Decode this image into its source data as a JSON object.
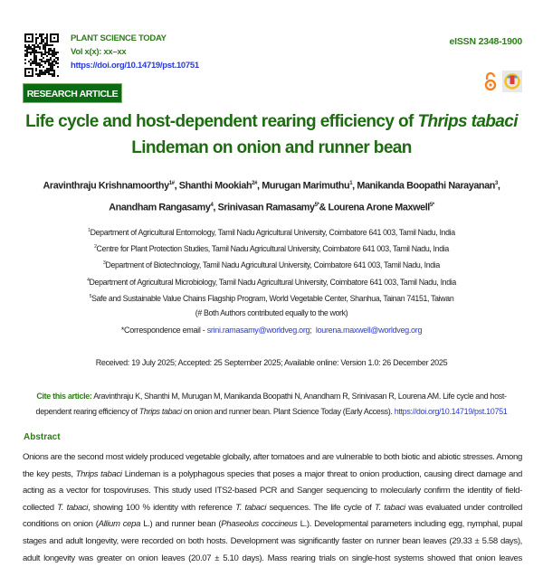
{
  "header": {
    "journal": "PLANT SCIENCE TODAY",
    "volume": "Vol x(x): xx–xx",
    "doi": "https://doi.org/10.14719/pst.10751",
    "issn": "eISSN 2348-1900",
    "icons": [
      "qr-code-icon",
      "open-access-icon",
      "crossmark-icon"
    ],
    "brand_color": "#2e7d1a"
  },
  "badge": "RESEARCH ARTICLE",
  "title": {
    "line1_a": "Life cycle and host-dependent rearing efficiency of ",
    "line1_b": "Thrips tabaci",
    "line2": "Lindeman on onion and runner bean"
  },
  "authors": [
    {
      "name": "Aravinthraju Krishnamoorthy",
      "sup": "1#",
      "sep": ", "
    },
    {
      "name": "Shanthi Mookiah",
      "sup": "2#",
      "sep": ", "
    },
    {
      "name": "Murugan Marimuthu",
      "sup": "1",
      "sep": ", "
    },
    {
      "name": "Manikanda Boopathi Narayanan",
      "sup": "3",
      "sep": ","
    },
    {
      "name": "Anandham Rangasamy",
      "sup": "4",
      "sep": ", "
    },
    {
      "name": "Srinivasan Ramasamy",
      "sup": "5*",
      "sep": "& "
    },
    {
      "name": "Lourena Arone Maxwell",
      "sup": "5*",
      "sep": ""
    }
  ],
  "affiliations": [
    {
      "sup": "1",
      "text": "Department of Agricultural Entomology, Tamil Nadu Agricultural University, Coimbatore 641 003, Tamil Nadu, India"
    },
    {
      "sup": "2",
      "text": "Centre for Plant Protection Studies, Tamil Nadu Agricultural University, Coimbatore 641 003, Tamil Nadu, India"
    },
    {
      "sup": "3",
      "text": "Department of Biotechnology, Tamil Nadu Agricultural University, Coimbatore 641 003, Tamil Nadu, India"
    },
    {
      "sup": "4",
      "text": "Department of Agricultural Microbiology, Tamil Nadu Agricultural University, Coimbatore 641 003, Tamil Nadu, India"
    },
    {
      "sup": "5",
      "text": "Safe and Sustainable Value Chains Flagship Program, World Vegetable Center, Shanhua, Tainan 74151, Taiwan"
    }
  ],
  "equal_note": "(# Both Authors contributed equally to the work)",
  "correspondence": {
    "label": "*Correspondence email - ",
    "email1": "srini.ramasamy@worldveg.org;",
    "email2": "lourena.maxwell@worldveg.org"
  },
  "dates": "Received: 19 July 2025; Accepted: 25 September 2025; Available online: Version 1.0: 26 December 2025",
  "cite": {
    "label": "Cite this article:",
    "text1": " Aravinthraju K, Shanthi M, Murugan M, Manikanda Boopathi N, Anandham R, Srinivasan R, Lourena AM. Life cycle and host-dependent rearing efficiency of ",
    "italic": "Thrips tabaci",
    "text2": " on onion and runner bean. Plant Science Today (Early Access). ",
    "link": "https://doi.org/10.14719/pst.10751"
  },
  "abstract": {
    "heading": "Abstract",
    "lines": [
      [
        {
          "t": "Onions are the second most widely produced vegetable globally, after tomatoes and are vulnerable to both biotic and abiotic stresses. Among"
        }
      ],
      [
        {
          "t": "the key pests, "
        },
        {
          "t": "Thrips tabaci",
          "i": true
        },
        {
          "t": " Lindeman is a polyphagous species that poses a major threat to onion production, causing direct damage and"
        }
      ],
      [
        {
          "t": "acting as a vector for tospoviruses. This study used ITS2-based PCR and Sanger sequencing to molecularly confirm the identity of field-"
        }
      ],
      [
        {
          "t": "collected "
        },
        {
          "t": "T. tabaci",
          "i": true
        },
        {
          "t": ", showing 100 % identity with reference "
        },
        {
          "t": "T. tabaci",
          "i": true
        },
        {
          "t": " sequences. The life cycle of "
        },
        {
          "t": "T. tabaci",
          "i": true
        },
        {
          "t": " was evaluated under controlled"
        }
      ],
      [
        {
          "t": "conditions on onion ("
        },
        {
          "t": "Allium cepa",
          "i": true
        },
        {
          "t": " L.) and runner bean ("
        },
        {
          "t": "Phaseolus coccineus",
          "i": true
        },
        {
          "t": " L.). Developmental parameters including egg, nymphal, pupal"
        }
      ],
      [
        {
          "t": "stages and adult longevity, were recorded on both hosts. Development was significantly faster on runner bean leaves (29.33 ± 5.58 days), while"
        }
      ],
      [
        {
          "t": "adult longevity was greater on onion leaves (20.07 ± 5.10 days). Mass rearing trials on single-host systems showed that onion leaves supported"
        }
      ]
    ]
  }
}
